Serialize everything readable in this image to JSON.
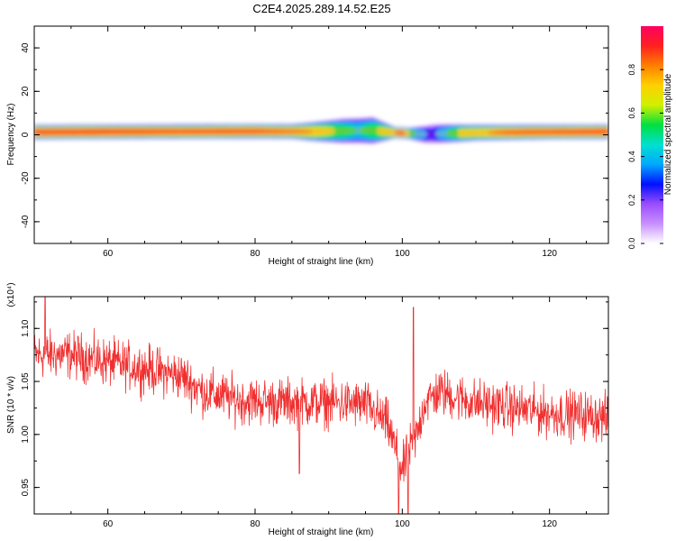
{
  "title": "C2E4.2025.289.14.52.E25",
  "colors": {
    "background": "#ffffff",
    "axis": "#000000",
    "snr_line": "#f03030",
    "colormap": [
      "#ffffff",
      "#c890ff",
      "#9a4cff",
      "#0010ff",
      "#00a8ff",
      "#00e0d0",
      "#00e040",
      "#d0f000",
      "#ffd000",
      "#ff8000",
      "#ff2020",
      "#ff0060"
    ]
  },
  "chart_data": [
    {
      "type": "heatmap",
      "name": "spectrogram",
      "xlabel": "Height of straight line (km)",
      "ylabel": "Frequency (Hz)",
      "xlim": [
        50,
        128
      ],
      "ylim": [
        -50,
        50
      ],
      "xticks": [
        60,
        80,
        100,
        120
      ],
      "yticks": [
        -40,
        -20,
        0,
        20,
        40
      ],
      "xtick_labels": [
        "60",
        "80",
        "100",
        "120"
      ],
      "ytick_labels": [
        "-40",
        "-20",
        "0",
        "20",
        "40"
      ],
      "colorbar": {
        "label": "Normalized spectral amplitude",
        "range": [
          0,
          1
        ],
        "ticks": [
          0.0,
          0.2,
          0.4,
          0.6,
          0.8
        ],
        "tick_labels": [
          "0.0",
          "0.2",
          "0.4",
          "0.6",
          "0.8"
        ]
      },
      "band": {
        "center_freq_hz": [
          [
            50,
            1.2
          ],
          [
            60,
            1.4
          ],
          [
            70,
            1.5
          ],
          [
            80,
            1.6
          ],
          [
            88,
            1.5
          ],
          [
            92,
            1.8
          ],
          [
            96,
            2.0
          ],
          [
            99,
            1.0
          ],
          [
            101,
            0.6
          ],
          [
            103,
            0.2
          ],
          [
            105,
            0.5
          ],
          [
            110,
            1.0
          ],
          [
            120,
            1.3
          ],
          [
            128,
            1.4
          ]
        ],
        "peak_amplitude": [
          [
            50,
            0.95
          ],
          [
            60,
            0.95
          ],
          [
            70,
            0.92
          ],
          [
            80,
            0.92
          ],
          [
            88,
            0.85
          ],
          [
            94,
            0.55
          ],
          [
            98,
            0.8
          ],
          [
            100,
            0.95
          ],
          [
            102,
            0.55
          ],
          [
            104,
            0.35
          ],
          [
            108,
            0.8
          ],
          [
            115,
            0.9
          ],
          [
            128,
            0.95
          ]
        ],
        "halfwidth_hz": [
          [
            50,
            2.0
          ],
          [
            70,
            2.0
          ],
          [
            85,
            2.0
          ],
          [
            92,
            3.5
          ],
          [
            96,
            3.8
          ],
          [
            99,
            1.5
          ],
          [
            101,
            1.5
          ],
          [
            104,
            2.8
          ],
          [
            110,
            2.2
          ],
          [
            120,
            2.0
          ],
          [
            128,
            2.0
          ]
        ]
      }
    },
    {
      "type": "line",
      "name": "snr",
      "xlabel": "Height of straight line (km)",
      "ylabel": "SNR (10 * v/v)",
      "ylabel_multiplier": "(x10⁴)",
      "xlim": [
        50,
        128
      ],
      "ylim": [
        0.925,
        1.13
      ],
      "xticks": [
        60,
        80,
        100,
        120
      ],
      "yticks": [
        0.95,
        1.0,
        1.05,
        1.1
      ],
      "xtick_labels": [
        "60",
        "80",
        "100",
        "120"
      ],
      "ytick_labels": [
        "0.95",
        "1.00",
        "1.05",
        "1.10"
      ],
      "series": [
        {
          "trend": [
            [
              50,
              1.075
            ],
            [
              55,
              1.075
            ],
            [
              60,
              1.068
            ],
            [
              65,
              1.062
            ],
            [
              70,
              1.055
            ],
            [
              73,
              1.04
            ],
            [
              78,
              1.032
            ],
            [
              85,
              1.03
            ],
            [
              90,
              1.03
            ],
            [
              95,
              1.028
            ],
            [
              98,
              1.01
            ],
            [
              100,
              0.965
            ],
            [
              101,
              0.985
            ],
            [
              102,
              1.0
            ],
            [
              103,
              1.03
            ],
            [
              105,
              1.04
            ],
            [
              110,
              1.03
            ],
            [
              115,
              1.025
            ],
            [
              120,
              1.02
            ],
            [
              125,
              1.018
            ],
            [
              128,
              1.015
            ]
          ],
          "noise_amplitude": 0.022,
          "spikes": [
            [
              51.5,
              1.13
            ],
            [
              101.5,
              1.12
            ],
            [
              99.5,
              0.925
            ],
            [
              100.8,
              0.925
            ],
            [
              86,
              0.963
            ]
          ]
        }
      ]
    }
  ]
}
